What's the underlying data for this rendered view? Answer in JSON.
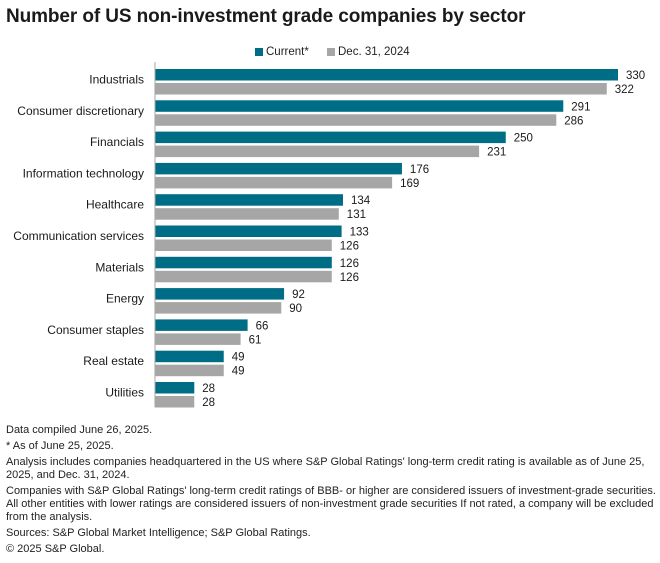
{
  "chart_data": {
    "type": "bar",
    "orientation": "horizontal",
    "title": "Number of US non-investment grade companies by sector",
    "xlabel": "",
    "ylabel": "",
    "grid": false,
    "legend_position": "top-center",
    "categories": [
      "Industrials",
      "Consumer discretionary",
      "Financials",
      "Information technology",
      "Healthcare",
      "Communication services",
      "Materials",
      "Energy",
      "Consumer staples",
      "Real estate",
      "Utilities"
    ],
    "series": [
      {
        "name": "Current*",
        "color": "#006d87",
        "values": [
          330,
          291,
          250,
          176,
          134,
          133,
          126,
          92,
          66,
          49,
          28
        ]
      },
      {
        "name": "Dec. 31, 2024",
        "color": "#a6a6a6",
        "values": [
          322,
          286,
          231,
          169,
          131,
          126,
          126,
          90,
          61,
          49,
          28
        ]
      }
    ],
    "xlim": [
      0,
      330
    ]
  },
  "footnotes": [
    "Data compiled June 26, 2025.",
    "* As of June 25, 2025.",
    "Analysis includes companies headquartered in the US where S&P Global Ratings' long-term credit rating is available as of June 25, 2025, and Dec. 31, 2024.",
    "Companies with S&P Global Ratings' long-term credit ratings of BBB- or higher are considered issuers of investment-grade securities. All other entities with lower ratings are considered issuers of non-investment grade securities If not rated, a company will be excluded from the analysis.",
    "Sources: S&P Global Market Intelligence; S&P Global Ratings.",
    "© 2025 S&P Global."
  ]
}
